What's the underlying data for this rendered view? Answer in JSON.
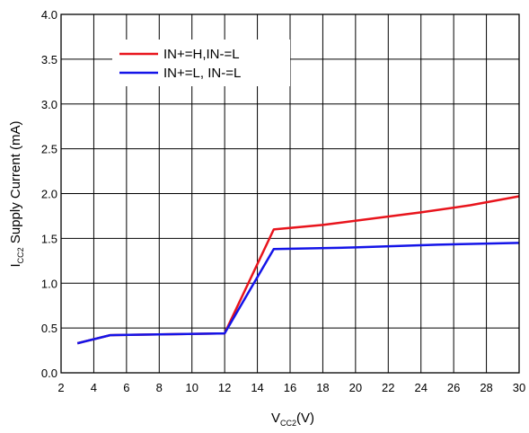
{
  "chart_data": {
    "type": "line",
    "title": "",
    "xlabel": {
      "main": "V",
      "sub": "CC2",
      "suffix": "(V)"
    },
    "ylabel": {
      "main": "I",
      "sub": "CC2",
      "suffix": " Supply Current (mA)"
    },
    "xlim": [
      2,
      30
    ],
    "ylim": [
      0.0,
      4.0
    ],
    "xticks": [
      2,
      4,
      6,
      8,
      10,
      12,
      14,
      16,
      18,
      20,
      22,
      24,
      26,
      28,
      30
    ],
    "xtick_labels": [
      "2",
      "4",
      "6",
      "8",
      "10",
      "12",
      "14",
      "16",
      "18",
      "20",
      "22",
      "24",
      "26",
      "28",
      "30"
    ],
    "yticks": [
      0.0,
      0.5,
      1.0,
      1.5,
      2.0,
      2.5,
      3.0,
      3.5,
      4.0
    ],
    "ytick_labels": [
      "0.0",
      "0.5",
      "1.0",
      "1.5",
      "2.0",
      "2.5",
      "3.0",
      "3.5",
      "4.0"
    ],
    "grid": true,
    "legend_position": "top-left",
    "series": [
      {
        "name": "IN+=H,IN-=L",
        "color": "#e8141c",
        "points": [
          [
            3,
            0.33
          ],
          [
            5,
            0.42
          ],
          [
            12,
            0.44
          ],
          [
            15,
            1.6
          ],
          [
            18,
            1.65
          ],
          [
            21,
            1.72
          ],
          [
            24,
            1.79
          ],
          [
            27,
            1.87
          ],
          [
            30,
            1.97
          ]
        ]
      },
      {
        "name": "IN+=L, IN-=L",
        "color": "#1414e8",
        "points": [
          [
            3,
            0.33
          ],
          [
            5,
            0.42
          ],
          [
            12,
            0.44
          ],
          [
            15,
            1.38
          ],
          [
            20,
            1.4
          ],
          [
            25,
            1.43
          ],
          [
            30,
            1.45
          ]
        ]
      }
    ]
  }
}
